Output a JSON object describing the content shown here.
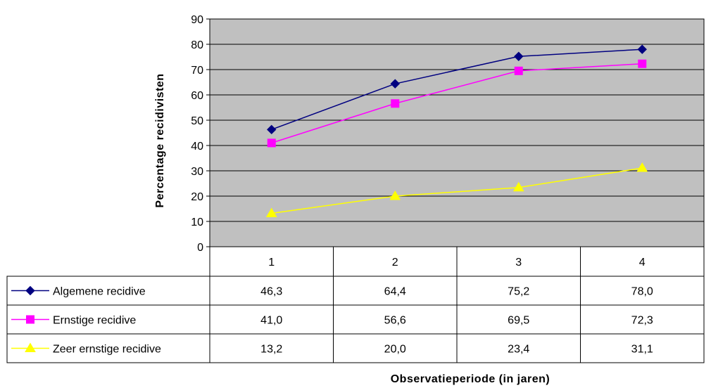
{
  "chart_data": {
    "type": "line",
    "title": "",
    "xlabel": "Observatieperiode (in jaren)",
    "ylabel": "Percentage recidivisten",
    "categories": [
      "1",
      "2",
      "3",
      "4"
    ],
    "ylim": [
      0,
      90
    ],
    "yticks": [
      "0",
      "10",
      "20",
      "30",
      "40",
      "50",
      "60",
      "70",
      "80",
      "90"
    ],
    "grid": true,
    "legend": "data-table",
    "plot_background": "#C0C0C0",
    "series": [
      {
        "name": "Algemene recidive",
        "color": "#000080",
        "marker": "diamond",
        "values": [
          46.3,
          64.4,
          75.2,
          78.0
        ],
        "labels": [
          "46,3",
          "64,4",
          "75,2",
          "78,0"
        ]
      },
      {
        "name": "Ernstige recidive",
        "color": "#FF00FF",
        "marker": "square",
        "values": [
          41.0,
          56.6,
          69.5,
          72.3
        ],
        "labels": [
          "41,0",
          "56,6",
          "69,5",
          "72,3"
        ]
      },
      {
        "name": "Zeer ernstige recidive",
        "color": "#FFFF00",
        "marker": "triangle",
        "values": [
          13.2,
          20.0,
          23.4,
          31.1
        ],
        "labels": [
          "13,2",
          "20,0",
          "23,4",
          "31,1"
        ]
      }
    ]
  }
}
